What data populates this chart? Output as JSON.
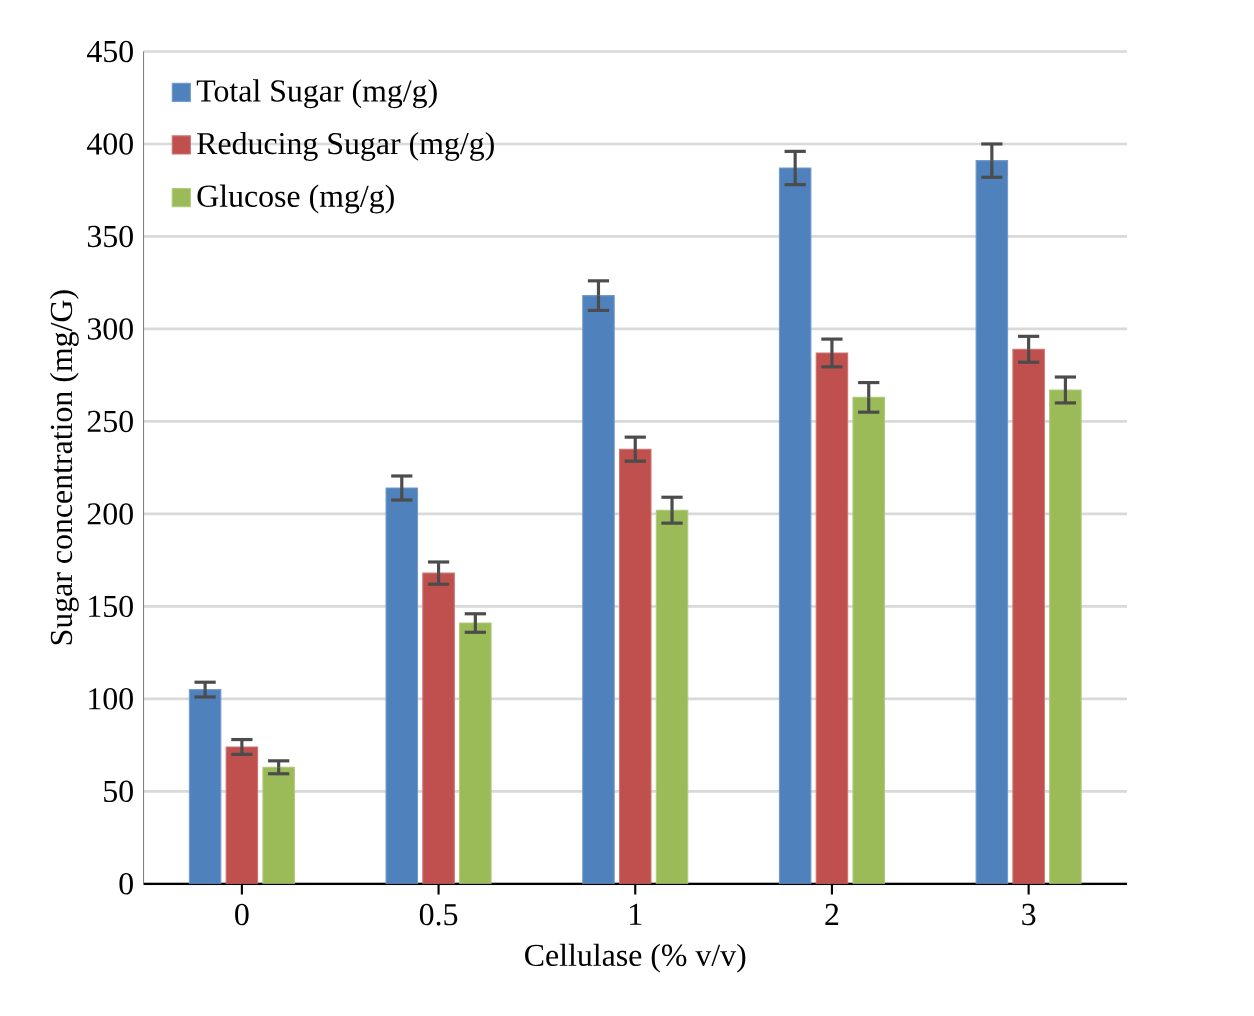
{
  "chart_data": {
    "type": "bar",
    "xlabel": "Cellulase (% v/v)",
    "ylabel": "Sugar  concentration (mg/G)",
    "categories": [
      "0",
      "0.5",
      "1",
      "2",
      "3"
    ],
    "series": [
      {
        "name": "Total Sugar (mg/g)",
        "color": "#4f81bd",
        "values": [
          105,
          214,
          318,
          387,
          391
        ],
        "errors": [
          4,
          6.5,
          8,
          9,
          9
        ]
      },
      {
        "name": "Reducing Sugar (mg/g)",
        "color": "#c0504d",
        "values": [
          74,
          168,
          235,
          287,
          289
        ],
        "errors": [
          4,
          6,
          6.5,
          7.5,
          7
        ]
      },
      {
        "name": "Glucose (mg/g)",
        "color": "#9bbb59",
        "values": [
          63,
          141,
          202,
          263,
          267
        ],
        "errors": [
          3.5,
          5,
          7,
          8,
          7
        ]
      }
    ],
    "ylim": [
      0,
      450
    ],
    "yticks": [
      0,
      50,
      100,
      150,
      200,
      250,
      300,
      350,
      400,
      450
    ],
    "grid": "y",
    "legend": "top left"
  }
}
